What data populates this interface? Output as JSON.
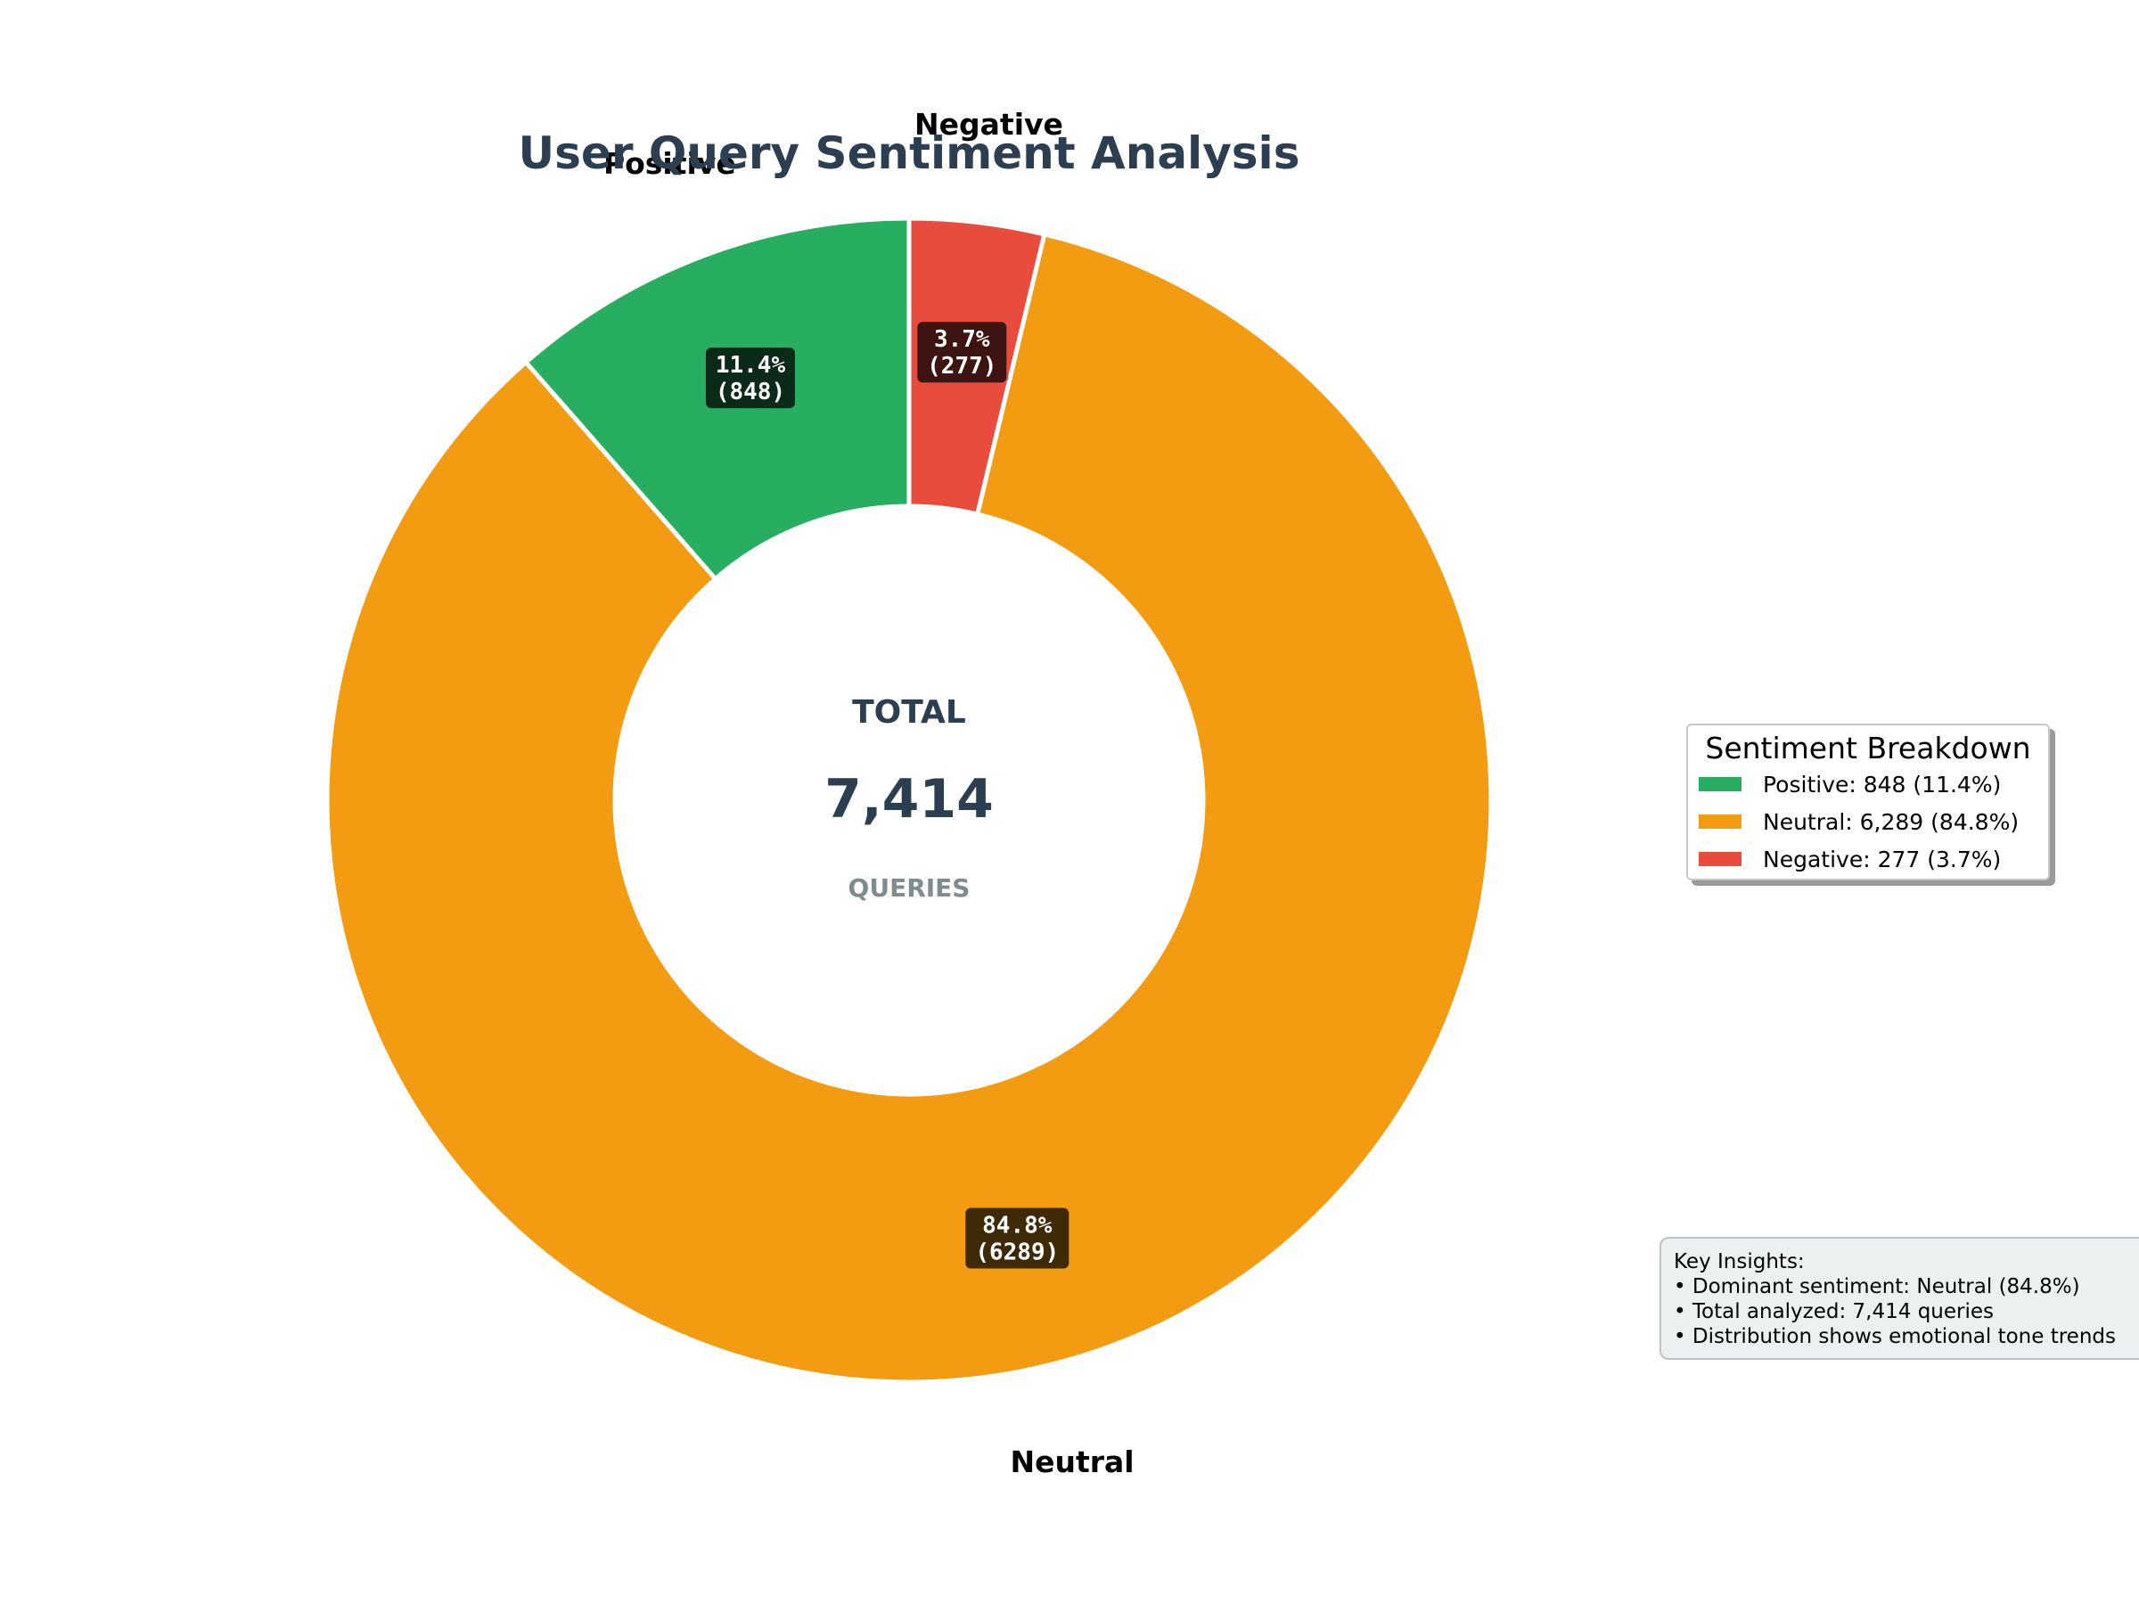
{
  "chart_data": {
    "type": "pie",
    "donut": true,
    "title": "User Query Sentiment Analysis",
    "categories": [
      "Positive",
      "Neutral",
      "Negative"
    ],
    "values": [
      848,
      6289,
      277
    ],
    "percentages": [
      "11.4%",
      "84.8%",
      "3.7%"
    ],
    "data_labels": [
      "(848)",
      "(6289)",
      "(277)"
    ],
    "colors": [
      "#27ae60",
      "#f39c12",
      "#e74c3c"
    ],
    "label_box_colors": [
      "#0b2a17",
      "#3f2a08",
      "#3d1411"
    ],
    "center": {
      "label": "TOTAL",
      "value": "7,414",
      "unit": "QUERIES"
    },
    "legend": {
      "title": "Sentiment Breakdown",
      "placement": "right",
      "entries": [
        "Positive: 848 (11.4%)",
        "Neutral: 6,289 (84.8%)",
        "Negative: 277 (3.7%)"
      ]
    }
  },
  "insights": {
    "heading": "Key Insights:",
    "lines": [
      "• Dominant sentiment: Neutral (84.8%)",
      "• Total analyzed: 7,414 queries",
      "• Distribution shows emotional tone trends"
    ]
  }
}
